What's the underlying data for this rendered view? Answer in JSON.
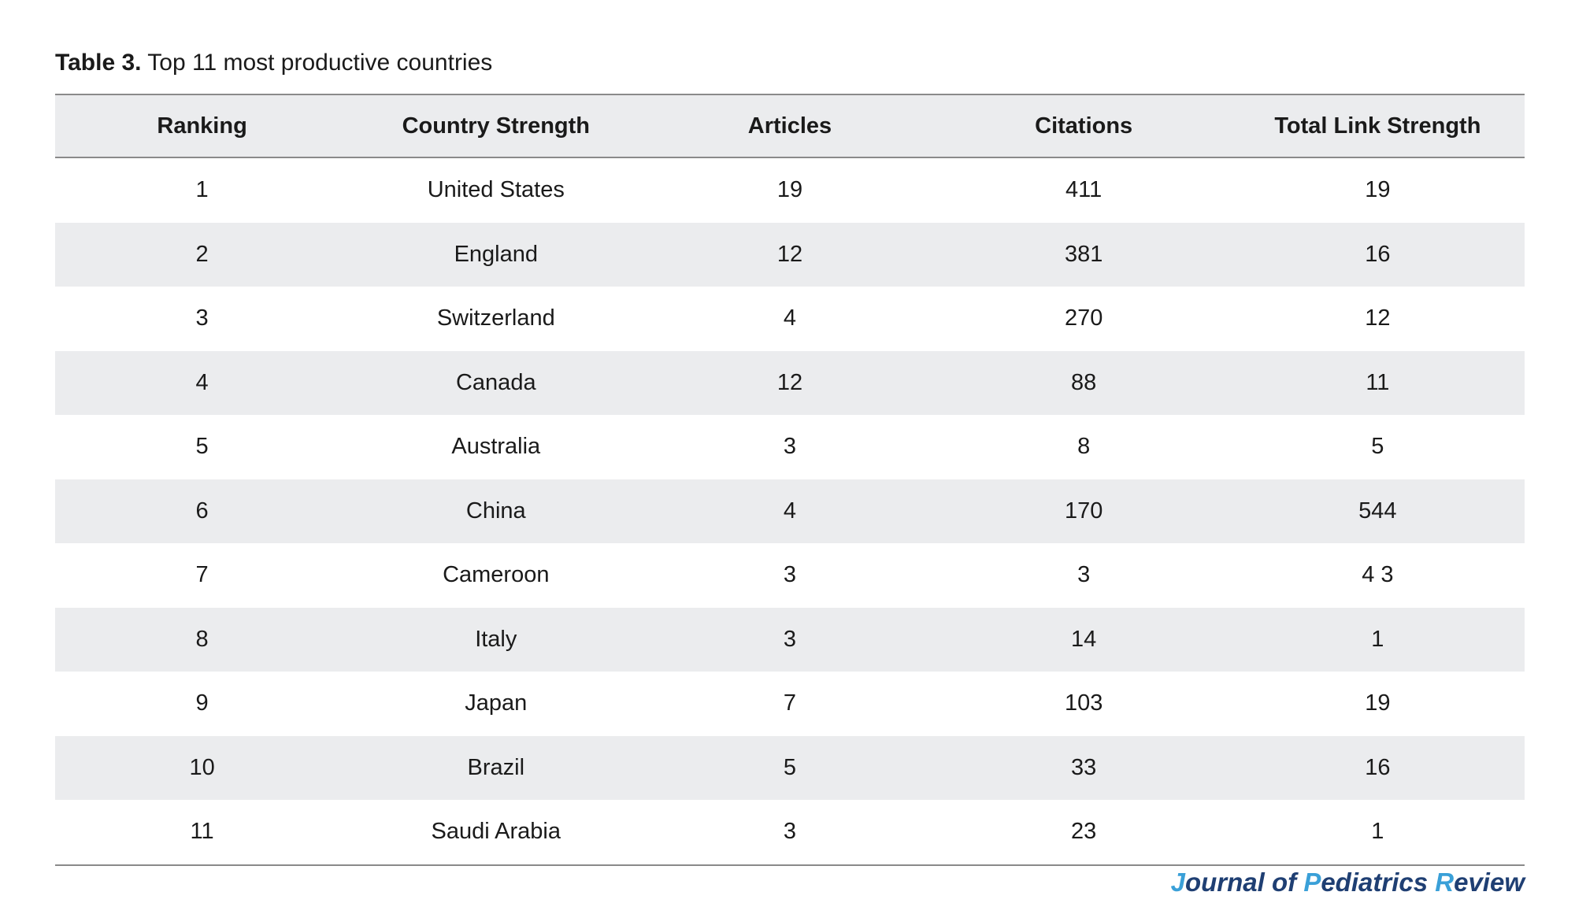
{
  "caption": {
    "label": "Table 3.",
    "text": "Top 11 most productive countries"
  },
  "table": {
    "headers": [
      "Ranking",
      "Country Strength",
      "Articles",
      "Citations",
      "Total Link Strength"
    ],
    "rows": [
      [
        "1",
        "United States",
        "19",
        "411",
        "19"
      ],
      [
        "2",
        "England",
        "12",
        "381",
        "16"
      ],
      [
        "3",
        "Switzerland",
        "4",
        "270",
        "12"
      ],
      [
        "4",
        "Canada",
        "12",
        "88",
        "11"
      ],
      [
        "5",
        "Australia",
        "3",
        "8",
        "5"
      ],
      [
        "6",
        "China",
        "4",
        "170",
        "544"
      ],
      [
        "7",
        "Cameroon",
        "3",
        "3",
        "4 3"
      ],
      [
        "8",
        "Italy",
        "3",
        "14",
        "1"
      ],
      [
        "9",
        "Japan",
        "7",
        "103",
        "19"
      ],
      [
        "10",
        "Brazil",
        "5",
        "33",
        "16"
      ],
      [
        "11",
        "Saudi Arabia",
        "3",
        "23",
        "1"
      ]
    ]
  },
  "journal": {
    "parts": [
      "J",
      "ournal of ",
      "P",
      "ediatrics ",
      "R",
      "eview"
    ]
  }
}
